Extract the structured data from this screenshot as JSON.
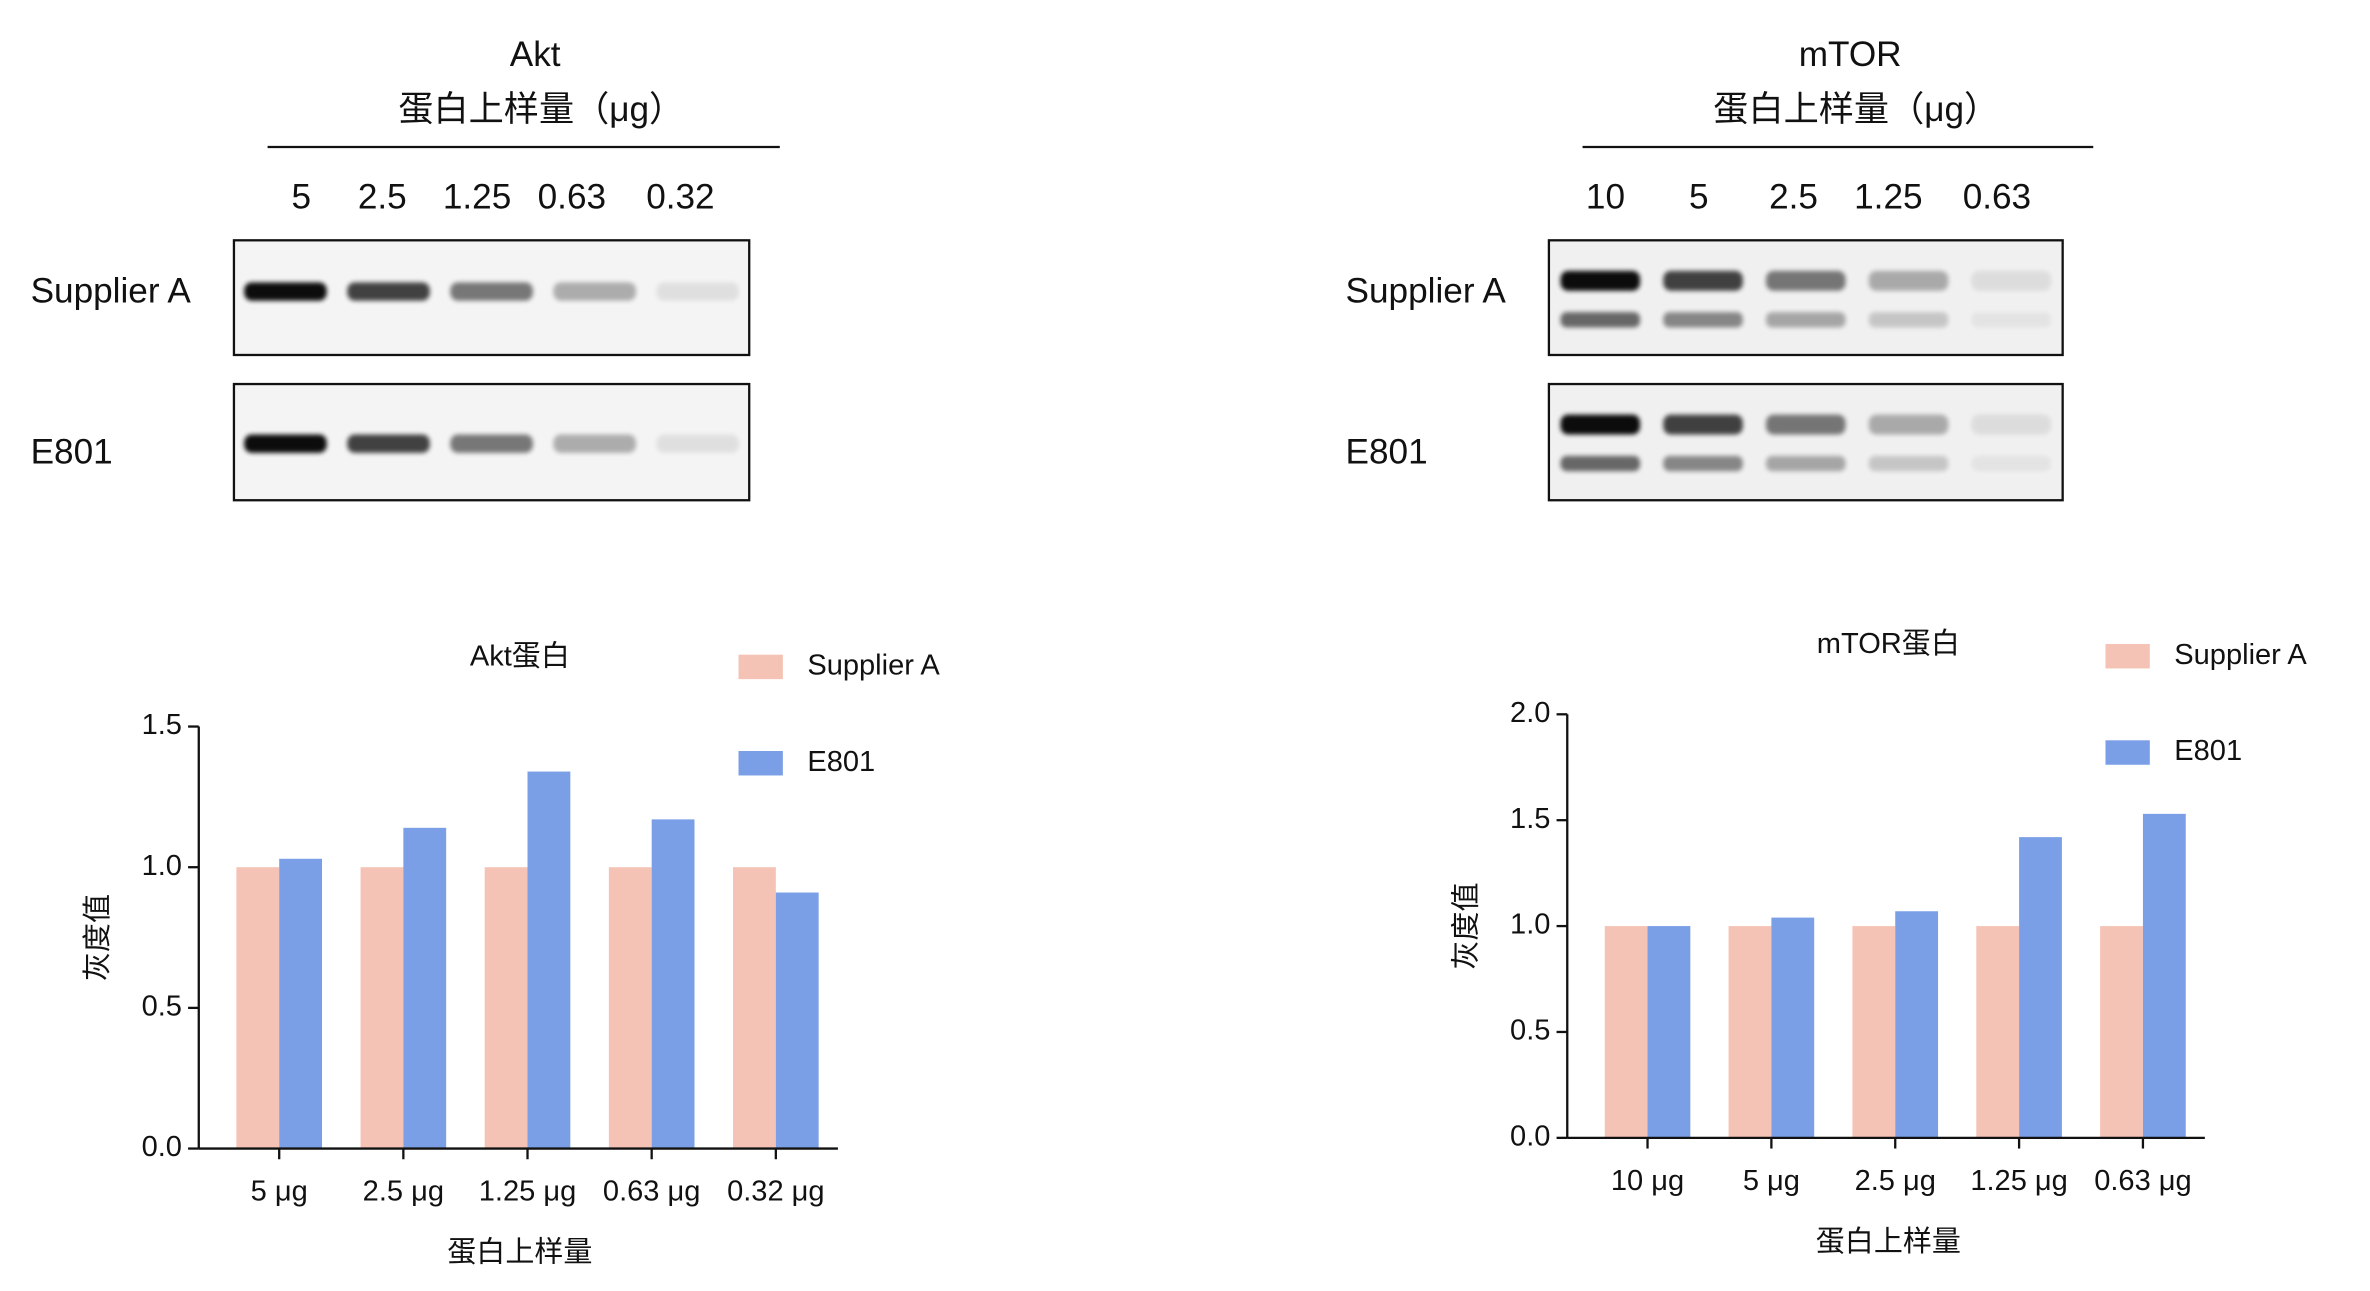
{
  "blots": [
    {
      "title": "Akt",
      "subtitle": "蛋白上样量（μg）",
      "lanes": [
        "5",
        "2.5",
        "1.25",
        "0.63",
        "0.32"
      ],
      "rows": [
        "Supplier A",
        "E801"
      ]
    },
    {
      "title": "mTOR",
      "subtitle": "蛋白上样量（μg）",
      "lanes": [
        "10",
        "5",
        "2.5",
        "1.25",
        "0.63"
      ],
      "rows": [
        "Supplier A",
        "E801"
      ]
    }
  ],
  "chart_data": [
    {
      "type": "bar",
      "title": "Akt蛋白",
      "x_label": "蛋白上样量",
      "y_label": "灰度值",
      "categories": [
        "5 μg",
        "2.5 μg",
        "1.25 μg",
        "0.63 μg",
        "0.32 μg"
      ],
      "series": [
        {
          "name": "Supplier A",
          "color": "#f5c3b5",
          "values": [
            1.0,
            1.0,
            1.0,
            1.0,
            1.0
          ]
        },
        {
          "name": "E801",
          "color": "#7a9fe6",
          "values": [
            1.03,
            1.14,
            1.34,
            1.17,
            0.91
          ]
        }
      ],
      "ylim": [
        0,
        1.5
      ],
      "yticks": [
        {
          "value": 0,
          "label": "0.0"
        },
        0.5,
        {
          "value": 1,
          "label": "1.0"
        },
        1.5
      ]
    },
    {
      "type": "bar",
      "title": "mTOR蛋白",
      "x_label": "蛋白上样量",
      "y_label": "灰度值",
      "categories": [
        "10 μg",
        "5 μg",
        "2.5 μg",
        "1.25 μg",
        "0.63 μg"
      ],
      "series": [
        {
          "name": "Supplier A",
          "color": "#f5c3b5",
          "values": [
            1.0,
            1.0,
            1.0,
            1.0,
            1.0
          ]
        },
        {
          "name": "E801",
          "color": "#7a9fe6",
          "values": [
            1.0,
            1.04,
            1.07,
            1.42,
            1.53
          ]
        }
      ],
      "ylim": [
        0,
        2
      ],
      "yticks": [
        {
          "value": 0,
          "label": "0.0"
        },
        0.5,
        {
          "value": 1,
          "label": "1.0"
        },
        1.5,
        {
          "value": 2,
          "label": "2.0"
        }
      ]
    }
  ]
}
